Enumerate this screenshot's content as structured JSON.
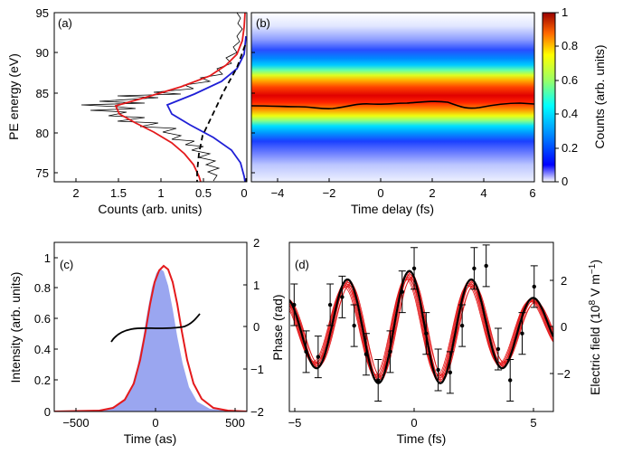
{
  "panels": {
    "a": {
      "label": "(a)",
      "xlabel": "Counts (arb. units)",
      "ylabel": "PE energy (eV)",
      "xticks": [
        "2",
        "1.5",
        "1",
        "0.5",
        "0"
      ],
      "yticks": [
        "75",
        "80",
        "85",
        "90",
        "95"
      ]
    },
    "b": {
      "label": "(b)",
      "xlabel": "Time delay (fs)",
      "xticks": [
        "−4",
        "−2",
        "0",
        "2",
        "4",
        "6"
      ]
    },
    "colorbar": {
      "label": "Counts (arb. units)",
      "ticks": [
        "0",
        "0.2",
        "0.4",
        "0.6",
        "0.8",
        "1"
      ]
    },
    "c": {
      "label": "(c)",
      "xlabel": "Time (as)",
      "ylabel": "Intensity (arb. units)",
      "y2label": "Phase (rad)",
      "xticks": [
        "−500",
        "0",
        "500"
      ],
      "yticks": [
        "0",
        "0.2",
        "0.4",
        "0.6",
        "0.8",
        "1"
      ],
      "y2ticks": [
        "−2",
        "−1",
        "0",
        "1",
        "2"
      ]
    },
    "d": {
      "label": "(d)",
      "xlabel": "Time (fs)",
      "y2label": "Electric field (10",
      "y2label_exp": "8",
      "y2label_units": " V m",
      "y2label_units_exp": "−1",
      "y2label_close": ")",
      "xticks": [
        "−5",
        "0",
        "5"
      ],
      "y2ticks": [
        "−2",
        "0",
        "2"
      ]
    }
  },
  "colors": {
    "data_trace": "#000000",
    "fit_total": "#e41a1c",
    "fit_peak": "#1f1fd6",
    "fit_background": "#000000",
    "intensity_fill": "#9aa6f0",
    "intensity_line": "#e41a1c",
    "phase_line": "#000000",
    "retrieved_field": "#000000",
    "reconstructions": "#e41a1c"
  },
  "chart_data": [
    {
      "panel": "a",
      "type": "line",
      "orientation": "x = counts (reversed axis), y = photoelectron energy",
      "xlim": [
        2.3,
        0
      ],
      "ylim": [
        74,
        95
      ],
      "series": [
        {
          "style": "black thin, noisy measured spectrum",
          "peak_energy": 83,
          "peak_counts": 1.75
        },
        {
          "style": "red, total fit",
          "peak_energy": 82.5,
          "peak_counts": 1.3
        },
        {
          "style": "blue, Gaussian peak",
          "peak_energy": 82.5,
          "peak_counts": 0.95
        },
        {
          "style": "black dashed, background",
          "points": [
            [
              0.45,
              77
            ],
            [
              0.4,
              80
            ],
            [
              0.2,
              85
            ],
            [
              0.05,
              90
            ]
          ]
        }
      ]
    },
    {
      "panel": "b",
      "type": "heatmap",
      "xlim": [
        -5,
        6
      ],
      "ylim": [
        74,
        95
      ],
      "z_range": [
        0,
        1
      ],
      "band_center_energy": 83.5,
      "black_line": {
        "x": [
          -5,
          -4,
          -3,
          -2,
          -1,
          0,
          1,
          2,
          3,
          4,
          5,
          6
        ],
        "y": [
          83.5,
          83.4,
          83.5,
          83.2,
          83.6,
          83.5,
          83.6,
          83.8,
          83.3,
          83.5,
          83.7,
          83.6
        ]
      }
    },
    {
      "panel": "c",
      "type": "area",
      "xlim": [
        -600,
        600
      ],
      "ylim": [
        0,
        1.1
      ],
      "y2lim": [
        -2,
        2
      ],
      "series": [
        {
          "style": "filled blue, intensity",
          "center": 0,
          "fwhm": 230,
          "peak": 0.95
        },
        {
          "style": "red, intensity",
          "center": 20,
          "fwhm": 270,
          "peak": 0.95
        },
        {
          "style": "black, phase (right axis)",
          "x": [
            -250,
            -200,
            -150,
            -100,
            -50,
            0,
            50,
            100,
            150,
            200,
            250,
            300
          ],
          "y": [
            -0.2,
            -0.02,
            0.04,
            0.03,
            0.02,
            0.02,
            0.02,
            0.03,
            0.05,
            0.1,
            0.22,
            0.4
          ]
        }
      ]
    },
    {
      "panel": "d",
      "type": "line",
      "xlim": [
        -5,
        6
      ],
      "ylim": [
        -3.2,
        3.3
      ],
      "series": [
        {
          "style": "black dots with error bars, measured field",
          "x": [
            -4.8,
            -4.3,
            -3.8,
            -3.3,
            -2.8,
            -2.3,
            -1.8,
            -1.3,
            -0.8,
            -0.3,
            0.2,
            0.7,
            1.2,
            1.7,
            2.2,
            2.7,
            3.2,
            3.7,
            4.2,
            4.7,
            5.2
          ],
          "y": [
            0.9,
            -0.9,
            -1.1,
            0.9,
            1.2,
            0.1,
            -1.0,
            -2.0,
            -0.9,
            1.4,
            2.3,
            -0.2,
            -1.6,
            -1.7,
            0.1,
            2.3,
            2.4,
            -0.8,
            -2.0,
            -0.2,
            1.6
          ]
        },
        {
          "style": "black thick, retrieved field",
          "model": "damped cosine, period 2.6 fs"
        },
        {
          "style": "red thin, 10 reconstructions",
          "model": "damped cosine, period 2.6 fs"
        }
      ]
    }
  ]
}
